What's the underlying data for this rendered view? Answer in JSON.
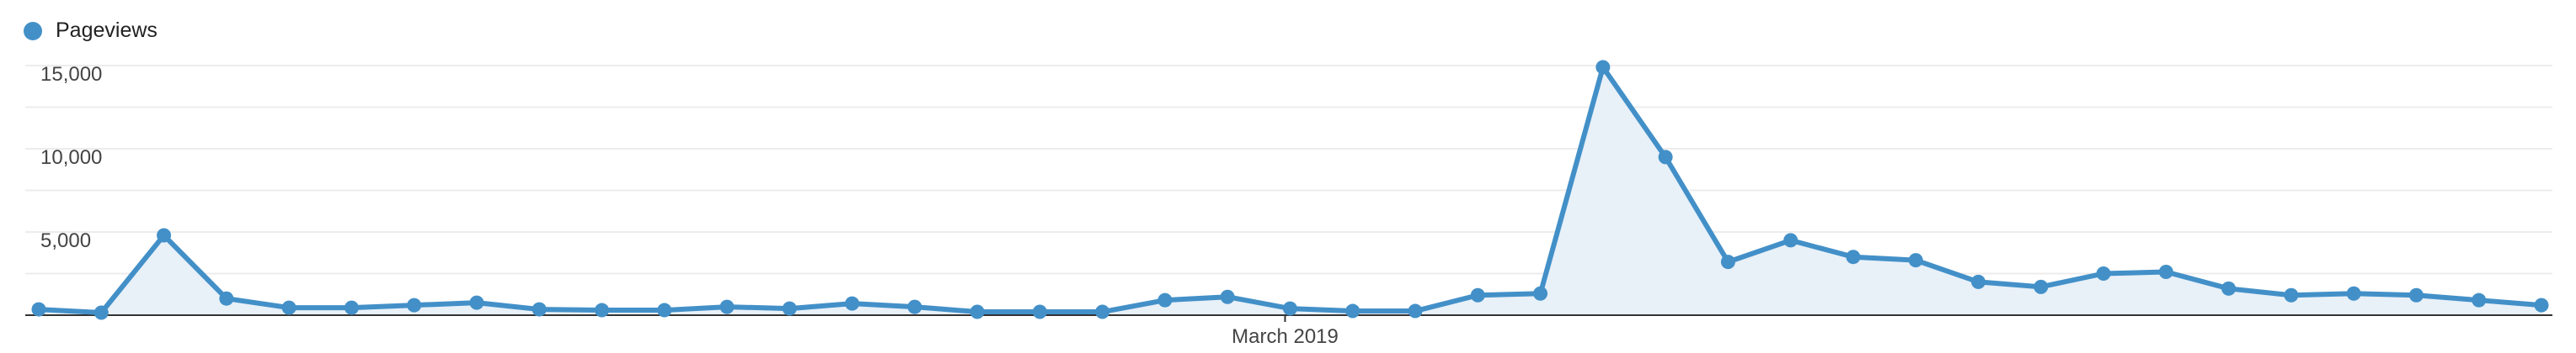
{
  "chart_data": {
    "type": "area",
    "series": [
      {
        "name": "Pageviews",
        "color": "#4390c8",
        "values": [
          350,
          150,
          4800,
          1000,
          450,
          450,
          600,
          750,
          350,
          300,
          300,
          500,
          400,
          700,
          500,
          200,
          200,
          200,
          900,
          1100,
          400,
          250,
          250,
          1200,
          1300,
          14900,
          9500,
          3200,
          4500,
          3500,
          3300,
          2000,
          1700,
          2500,
          2600,
          1600,
          1200,
          1300,
          1200,
          900,
          600
        ]
      }
    ],
    "x_tick_labels": [
      "March 2019"
    ],
    "x_tick_index": 20,
    "y_tick_values": [
      5000,
      10000,
      15000
    ],
    "y_tick_labels": [
      "5,000",
      "10,000",
      "15,000"
    ],
    "ylim": [
      0,
      15000
    ],
    "grid": true,
    "legend_position": "top-left",
    "fill_color": "#e8f0f8"
  }
}
